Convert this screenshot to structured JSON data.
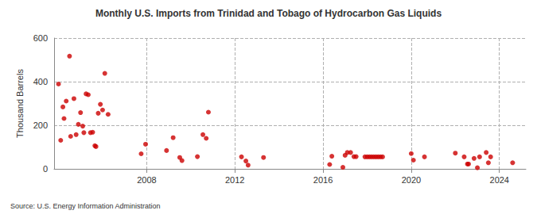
{
  "chart_data": {
    "type": "scatter",
    "title": "Monthly U.S. Imports from Trinidad and Tobago of Hydrocarbon Gas Liquids",
    "ylabel": "Thousand Barrels",
    "source": "Source: U.S. Energy Information Administration",
    "x": [
      2004.0,
      2004.1,
      2004.2,
      2004.25,
      2004.35,
      2004.5,
      2004.55,
      2004.7,
      2004.8,
      2004.9,
      2005.0,
      2005.1,
      2005.15,
      2005.25,
      2005.35,
      2005.45,
      2005.55,
      2005.65,
      2005.7,
      2005.8,
      2005.9,
      2006.0,
      2006.1,
      2006.25,
      2007.75,
      2007.95,
      2008.9,
      2009.2,
      2009.5,
      2009.6,
      2010.3,
      2010.55,
      2010.7,
      2010.8,
      2012.3,
      2012.5,
      2012.6,
      2013.3,
      2016.3,
      2016.4,
      2016.9,
      2017.0,
      2017.1,
      2017.25,
      2017.4,
      2017.5,
      2017.9,
      2018.0,
      2018.1,
      2018.2,
      2018.3,
      2018.4,
      2018.5,
      2018.6,
      2018.7,
      2020.0,
      2020.1,
      2020.6,
      2022.0,
      2022.4,
      2022.55,
      2022.6,
      2022.85,
      2023.0,
      2023.1,
      2023.4,
      2023.5,
      2023.6,
      2024.6
    ],
    "values": [
      389,
      131,
      284,
      231,
      311,
      517,
      149,
      322,
      157,
      204,
      258,
      196,
      166,
      344,
      340,
      166,
      168,
      106,
      102,
      255,
      296,
      270,
      438,
      250,
      69,
      113,
      84,
      143,
      52,
      38,
      56,
      157,
      140,
      260,
      55,
      36,
      17,
      52,
      20,
      58,
      7,
      62,
      75,
      75,
      56,
      56,
      55,
      55,
      55,
      55,
      55,
      55,
      55,
      55,
      55,
      70,
      40,
      55,
      72,
      55,
      22,
      22,
      48,
      5,
      55,
      75,
      28,
      55,
      28
    ],
    "color": "#cc0000",
    "marker": "circle",
    "xlim": [
      2003.8,
      2025.2
    ],
    "xticks": [
      2008,
      2012,
      2016,
      2020,
      2024
    ],
    "ylim": [
      0,
      600
    ],
    "yticks": [
      0,
      200,
      400,
      600
    ],
    "grid": true
  }
}
